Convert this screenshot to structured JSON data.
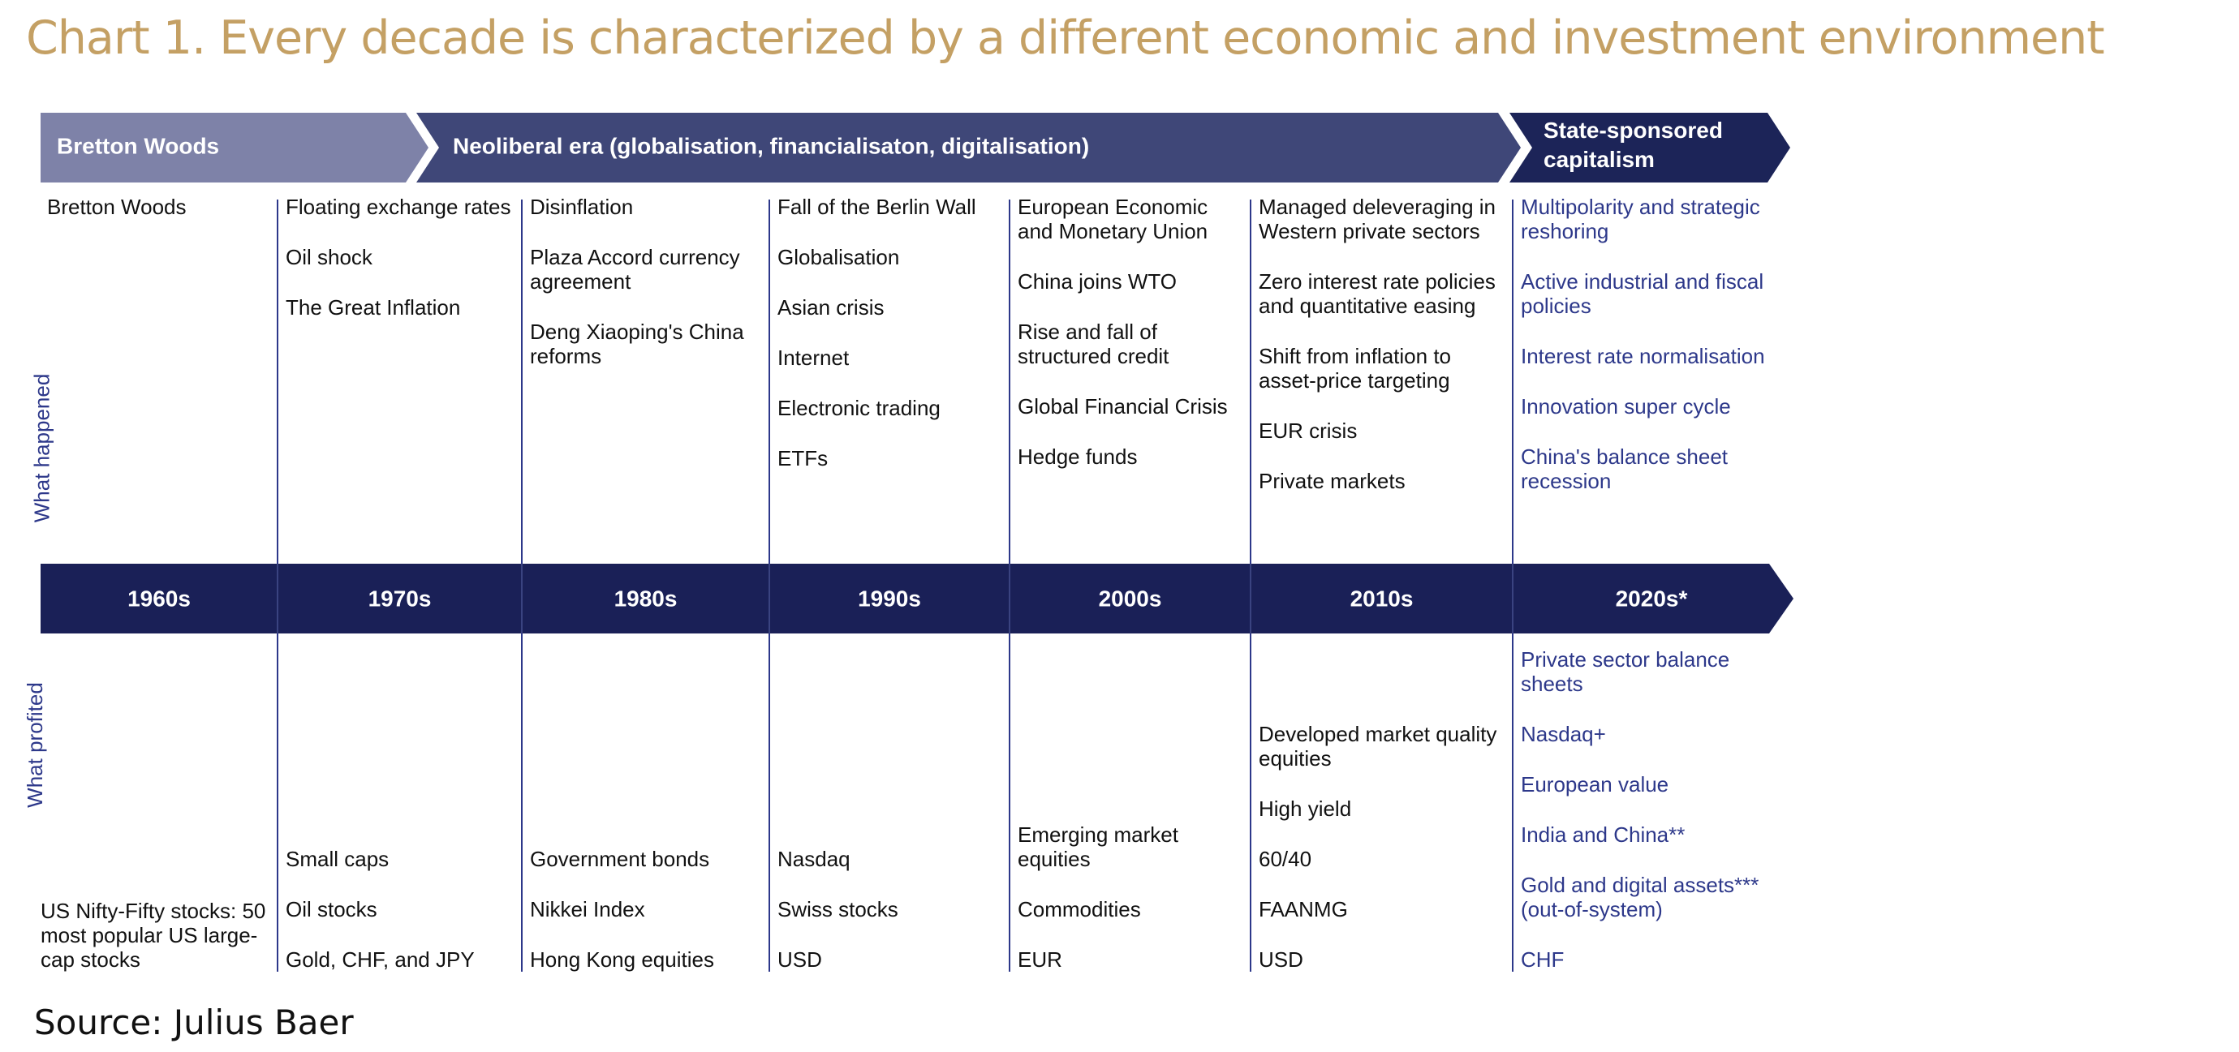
{
  "title": "Chart 1. Every decade is characterized by a different economic and investment environment",
  "eras": [
    "Bretton Woods",
    "Neoliberal era (globalisation, financialisaton, digitalisation)",
    "State-sponsored capitalism"
  ],
  "row_labels": {
    "happened": "What happened",
    "profited": "What profited"
  },
  "columns": [
    {
      "decade": "1960s",
      "happened": [
        "Bretton Woods"
      ],
      "profited": [
        "US Nifty-Fifty stocks: 50 most popular US large-cap stocks"
      ]
    },
    {
      "decade": "1970s",
      "happened": [
        "Floating exchange rates",
        "Oil shock",
        "The Great Inflation"
      ],
      "profited": [
        "Small caps",
        "Oil stocks",
        "Gold, CHF, and JPY"
      ]
    },
    {
      "decade": "1980s",
      "happened": [
        "Disinflation",
        "Plaza Accord currency agreement",
        "Deng Xiaoping's China reforms"
      ],
      "profited": [
        "Government bonds",
        "Nikkei Index",
        "Hong Kong equities"
      ]
    },
    {
      "decade": "1990s",
      "happened": [
        "Fall of the Berlin Wall",
        "Globalisation",
        "Asian crisis",
        "Internet",
        "Electronic trading",
        "ETFs"
      ],
      "profited": [
        "Nasdaq",
        "Swiss stocks",
        "USD"
      ]
    },
    {
      "decade": "2000s",
      "happened": [
        "European Economic and Monetary Union",
        "China joins WTO",
        "Rise and fall of structured credit",
        "Global Financial Crisis",
        "Hedge funds"
      ],
      "profited": [
        "Emerging market equities",
        "Commodities",
        "EUR"
      ]
    },
    {
      "decade": "2010s",
      "happened": [
        "Managed deleveraging in Western private sectors",
        "Zero interest rate policies and quantitative easing",
        "Shift from inflation to asset-price targeting",
        "EUR crisis",
        "Private markets"
      ],
      "profited": [
        "Developed market quality equities",
        "High yield",
        "60/40",
        "FAANMG",
        "USD"
      ]
    },
    {
      "decade": "2020s*",
      "happened": [
        "Multipolarity and strategic reshoring",
        "Active industrial and fiscal policies",
        "Interest rate normalisation",
        "Innovation super cycle",
        "China's balance sheet recession"
      ],
      "profited": [
        "Private sector balance sheets",
        "Nasdaq+",
        "European value",
        "India and China**",
        "Gold and digital assets*** (out-of-system)",
        "CHF"
      ]
    }
  ],
  "source": "Source: Julius Baer"
}
